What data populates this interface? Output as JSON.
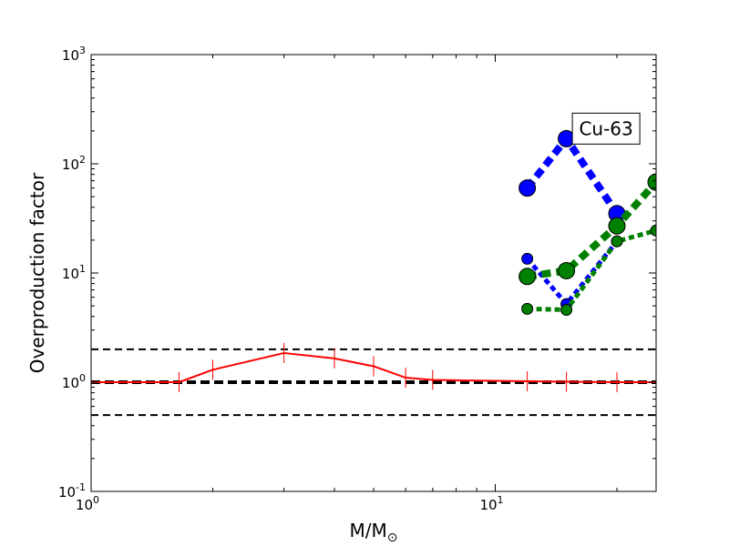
{
  "chart_data": {
    "type": "line",
    "title": "",
    "xlabel": {
      "main": "M/M",
      "sub": "⊙"
    },
    "ylabel": "Overproduction factor",
    "xscale": "log",
    "yscale": "log",
    "xlim": [
      1,
      25
    ],
    "ylim": [
      0.1,
      1000
    ],
    "grid": false,
    "legend": "none",
    "x_ticks": [
      {
        "value": 1,
        "base": "10",
        "exp": "0"
      },
      {
        "value": 10,
        "base": "10",
        "exp": "1"
      }
    ],
    "y_ticks": [
      {
        "value": 0.1,
        "base": "10",
        "exp": "-1"
      },
      {
        "value": 1,
        "base": "10",
        "exp": "0"
      },
      {
        "value": 10,
        "base": "10",
        "exp": "1"
      },
      {
        "value": 100,
        "base": "10",
        "exp": "2"
      },
      {
        "value": 1000,
        "base": "10",
        "exp": "3"
      }
    ],
    "reference_lines": [
      {
        "y": 2,
        "style": "dashed",
        "color": "#000000",
        "width": 2
      },
      {
        "y": 1,
        "style": "dashed",
        "color": "#000000",
        "width": 4
      },
      {
        "y": 0.5,
        "style": "dashed",
        "color": "#000000",
        "width": 2
      }
    ],
    "series": [
      {
        "style": "solid",
        "color": "#ff0000",
        "width": 2,
        "marker": "vline",
        "x": [
          1,
          1.65,
          2,
          3,
          4,
          5,
          6,
          7,
          12,
          15,
          20,
          25
        ],
        "y": [
          1.0,
          1.0,
          1.3,
          1.85,
          1.65,
          1.4,
          1.1,
          1.05,
          1.02,
          1.01,
          1.0,
          1.0
        ]
      },
      {
        "style": "dotted",
        "color": "#0000ff",
        "width": 8,
        "marker": "circle",
        "marker_size": 9,
        "x": [
          12,
          15,
          20
        ],
        "y": [
          60,
          170,
          35
        ]
      },
      {
        "style": "dotted",
        "color": "#0000ff",
        "width": 5,
        "marker": "circle",
        "marker_size": 6,
        "x": [
          12,
          15,
          20
        ],
        "y": [
          13.5,
          5.2,
          19.5
        ]
      },
      {
        "style": "dotted",
        "color": "#008000",
        "width": 8,
        "marker": "circle",
        "marker_size": 9,
        "x": [
          12,
          15,
          20,
          25
        ],
        "y": [
          9.3,
          10.5,
          27,
          68
        ]
      },
      {
        "style": "dotted",
        "color": "#008000",
        "width": 5,
        "marker": "circle",
        "marker_size": 6,
        "x": [
          12,
          15,
          20,
          25
        ],
        "y": [
          4.7,
          4.6,
          19.5,
          24.5
        ]
      }
    ],
    "annotations": [
      {
        "text": "Cu-63",
        "x": 18.8,
        "y": 210
      }
    ]
  }
}
